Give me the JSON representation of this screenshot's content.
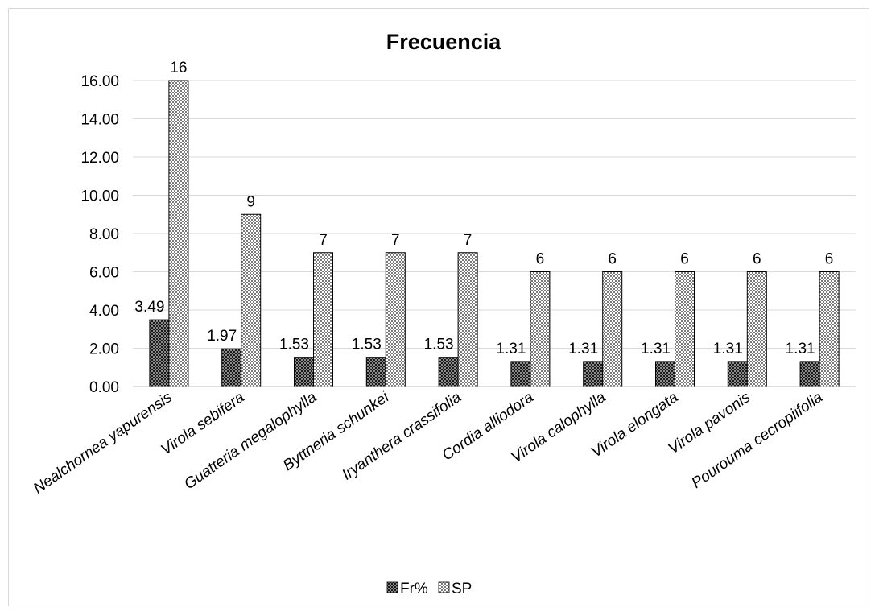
{
  "chart_data": {
    "type": "bar",
    "title": "Frecuencia",
    "categories": [
      "Nealchornea yapurensis",
      "Virola sebifera",
      "Guatteria megalophylla",
      "Byttneria schunkei",
      "Iryanthera crassifolia",
      "Cordia alliodora",
      "Virola calophylla",
      "Virola elongata",
      "Virola pavonis",
      "Pourouma cecropiifolia"
    ],
    "series": [
      {
        "name": "Fr%",
        "values": [
          3.49,
          1.97,
          1.53,
          1.53,
          1.53,
          1.31,
          1.31,
          1.31,
          1.31,
          1.31
        ],
        "labels": [
          "3.49",
          "1.97",
          "1.53",
          "1.53",
          "1.53",
          "1.31",
          "1.31",
          "1.31",
          "1.31",
          "1.31"
        ],
        "pattern": "dark-checker"
      },
      {
        "name": "SP",
        "values": [
          16,
          9,
          7,
          7,
          7,
          6,
          6,
          6,
          6,
          6
        ],
        "labels": [
          "16",
          "9",
          "7",
          "7",
          "7",
          "6",
          "6",
          "6",
          "6",
          "6"
        ],
        "pattern": "light-checker"
      }
    ],
    "y_ticks": [
      "0.00",
      "2.00",
      "4.00",
      "6.00",
      "8.00",
      "10.00",
      "12.00",
      "14.00",
      "16.00"
    ],
    "ylim": [
      0,
      16
    ],
    "grid": "horizontal",
    "legend_position": "bottom"
  }
}
